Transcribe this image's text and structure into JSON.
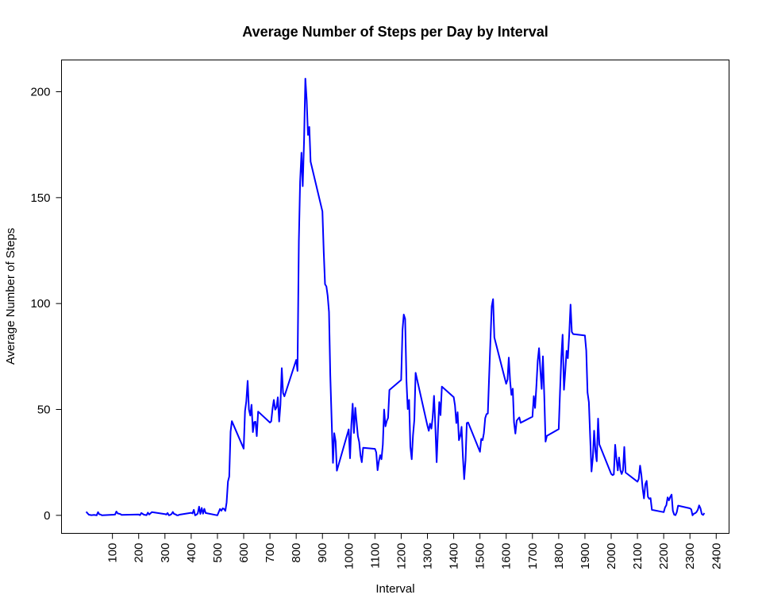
{
  "chart_data": {
    "type": "line",
    "title": "Average Number of Steps per Day by Interval",
    "xlabel": "Interval",
    "ylabel": "Average Number of Steps",
    "xlim": [
      -94,
      2449
    ],
    "ylim": [
      -8.5,
      215
    ],
    "x_ticks": [
      100,
      200,
      300,
      400,
      500,
      600,
      700,
      800,
      900,
      1000,
      1100,
      1200,
      1300,
      1400,
      1500,
      1600,
      1700,
      1800,
      1900,
      2000,
      2100,
      2200,
      2300,
      2400
    ],
    "y_ticks": [
      0,
      50,
      100,
      150,
      200
    ],
    "grid": false,
    "line_color": "#0000ff",
    "series": [
      {
        "values": [
          [
            0,
            1.7
          ],
          [
            10,
            0.3
          ],
          [
            20,
            0.1
          ],
          [
            30,
            0.2
          ],
          [
            40,
            0.0
          ],
          [
            45,
            1.5
          ],
          [
            50,
            0.5
          ],
          [
            55,
            0.4
          ],
          [
            60,
            0.0
          ],
          [
            105,
            0.3
          ],
          [
            110,
            0.4
          ],
          [
            115,
            1.8
          ],
          [
            120,
            0.9
          ],
          [
            130,
            0.6
          ],
          [
            135,
            0.2
          ],
          [
            200,
            0.4
          ],
          [
            205,
            0.1
          ],
          [
            210,
            1.1
          ],
          [
            220,
            0.3
          ],
          [
            230,
            0.1
          ],
          [
            235,
            1.3
          ],
          [
            240,
            0.4
          ],
          [
            250,
            1.5
          ],
          [
            300,
            0.6
          ],
          [
            305,
            0.4
          ],
          [
            310,
            1.1
          ],
          [
            315,
            0.0
          ],
          [
            320,
            0.2
          ],
          [
            325,
            0.6
          ],
          [
            330,
            1.6
          ],
          [
            335,
            0.6
          ],
          [
            340,
            0.5
          ],
          [
            345,
            0.1
          ],
          [
            350,
            0.0
          ],
          [
            355,
            0.3
          ],
          [
            400,
            1.2
          ],
          [
            405,
            0.9
          ],
          [
            410,
            2.6
          ],
          [
            415,
            0.0
          ],
          [
            420,
            0.3
          ],
          [
            425,
            0.9
          ],
          [
            430,
            4.1
          ],
          [
            435,
            0.7
          ],
          [
            440,
            3.5
          ],
          [
            445,
            0.8
          ],
          [
            450,
            3.1
          ],
          [
            455,
            1.1
          ],
          [
            500,
            0.0
          ],
          [
            505,
            1.6
          ],
          [
            510,
            3.0
          ],
          [
            515,
            2.2
          ],
          [
            520,
            3.3
          ],
          [
            525,
            3.0
          ],
          [
            530,
            2.1
          ],
          [
            535,
            6.1
          ],
          [
            540,
            16.0
          ],
          [
            545,
            18.3
          ],
          [
            550,
            39.5
          ],
          [
            555,
            44.5
          ],
          [
            600,
            31.5
          ],
          [
            605,
            49.3
          ],
          [
            610,
            53.8
          ],
          [
            615,
            63.5
          ],
          [
            620,
            50.0
          ],
          [
            625,
            47.1
          ],
          [
            630,
            52.2
          ],
          [
            635,
            39.3
          ],
          [
            640,
            44.0
          ],
          [
            645,
            44.2
          ],
          [
            650,
            37.4
          ],
          [
            655,
            49.0
          ],
          [
            700,
            43.8
          ],
          [
            705,
            44.4
          ],
          [
            710,
            50.5
          ],
          [
            715,
            54.5
          ],
          [
            720,
            49.9
          ],
          [
            725,
            51.0
          ],
          [
            730,
            55.7
          ],
          [
            735,
            44.3
          ],
          [
            740,
            52.3
          ],
          [
            745,
            69.5
          ],
          [
            750,
            57.8
          ],
          [
            755,
            56.2
          ],
          [
            800,
            73.4
          ],
          [
            805,
            68.2
          ],
          [
            810,
            129.4
          ],
          [
            815,
            157.5
          ],
          [
            820,
            171.2
          ],
          [
            825,
            155.4
          ],
          [
            830,
            177.3
          ],
          [
            835,
            206.2
          ],
          [
            840,
            195.9
          ],
          [
            845,
            179.6
          ],
          [
            850,
            183.4
          ],
          [
            855,
            167.0
          ],
          [
            900,
            143.5
          ],
          [
            905,
            124.0
          ],
          [
            910,
            109.1
          ],
          [
            915,
            108.1
          ],
          [
            920,
            103.7
          ],
          [
            925,
            96.0
          ],
          [
            930,
            66.2
          ],
          [
            935,
            45.2
          ],
          [
            940,
            24.8
          ],
          [
            945,
            38.8
          ],
          [
            950,
            34.98
          ],
          [
            955,
            21.1
          ],
          [
            1000,
            40.6
          ],
          [
            1005,
            26.98
          ],
          [
            1010,
            42.4
          ],
          [
            1015,
            52.7
          ],
          [
            1020,
            38.9
          ],
          [
            1025,
            50.8
          ],
          [
            1030,
            44.3
          ],
          [
            1035,
            37.4
          ],
          [
            1040,
            34.7
          ],
          [
            1045,
            28.3
          ],
          [
            1050,
            25.1
          ],
          [
            1055,
            31.9
          ],
          [
            1100,
            31.4
          ],
          [
            1105,
            29.7
          ],
          [
            1110,
            21.3
          ],
          [
            1115,
            25.5
          ],
          [
            1120,
            28.4
          ],
          [
            1125,
            26.5
          ],
          [
            1130,
            33.4
          ],
          [
            1135,
            49.98
          ],
          [
            1140,
            42.0
          ],
          [
            1145,
            44.6
          ],
          [
            1150,
            46.0
          ],
          [
            1155,
            59.2
          ],
          [
            1200,
            63.9
          ],
          [
            1205,
            87.6
          ],
          [
            1210,
            94.8
          ],
          [
            1215,
            92.8
          ],
          [
            1220,
            63.4
          ],
          [
            1225,
            50.2
          ],
          [
            1230,
            54.5
          ],
          [
            1235,
            32.4
          ],
          [
            1240,
            26.5
          ],
          [
            1245,
            37.7
          ],
          [
            1250,
            45.1
          ],
          [
            1255,
            67.3
          ],
          [
            1300,
            42.3
          ],
          [
            1305,
            39.9
          ],
          [
            1310,
            43.3
          ],
          [
            1315,
            40.98
          ],
          [
            1320,
            46.2
          ],
          [
            1325,
            56.4
          ],
          [
            1330,
            42.75
          ],
          [
            1335,
            25.1
          ],
          [
            1340,
            39.96
          ],
          [
            1345,
            53.5
          ],
          [
            1350,
            47.3
          ],
          [
            1355,
            60.8
          ],
          [
            1400,
            55.8
          ],
          [
            1405,
            51.96
          ],
          [
            1410,
            43.6
          ],
          [
            1415,
            48.7
          ],
          [
            1420,
            35.5
          ],
          [
            1425,
            37.5
          ],
          [
            1430,
            41.8
          ],
          [
            1435,
            27.5
          ],
          [
            1440,
            17.1
          ],
          [
            1445,
            26.1
          ],
          [
            1450,
            43.6
          ],
          [
            1455,
            43.8
          ],
          [
            1500,
            30.0
          ],
          [
            1505,
            36.1
          ],
          [
            1510,
            35.5
          ],
          [
            1515,
            38.8
          ],
          [
            1520,
            45.96
          ],
          [
            1525,
            47.8
          ],
          [
            1530,
            48.1
          ],
          [
            1535,
            65.3
          ],
          [
            1540,
            82.9
          ],
          [
            1545,
            98.7
          ],
          [
            1550,
            102.1
          ],
          [
            1555,
            83.96
          ],
          [
            1600,
            62.1
          ],
          [
            1605,
            64.1
          ],
          [
            1610,
            74.5
          ],
          [
            1615,
            63.2
          ],
          [
            1620,
            56.9
          ],
          [
            1625,
            59.8
          ],
          [
            1630,
            43.9
          ],
          [
            1635,
            38.6
          ],
          [
            1640,
            44.7
          ],
          [
            1645,
            45.5
          ],
          [
            1650,
            46.2
          ],
          [
            1655,
            43.7
          ],
          [
            1700,
            46.6
          ],
          [
            1705,
            56.3
          ],
          [
            1710,
            50.7
          ],
          [
            1715,
            61.2
          ],
          [
            1720,
            72.7
          ],
          [
            1725,
            78.9
          ],
          [
            1730,
            68.9
          ],
          [
            1735,
            59.7
          ],
          [
            1740,
            75.1
          ],
          [
            1745,
            56.5
          ],
          [
            1750,
            34.8
          ],
          [
            1755,
            37.5
          ],
          [
            1800,
            40.7
          ],
          [
            1805,
            58.0
          ],
          [
            1810,
            74.7
          ],
          [
            1815,
            85.3
          ],
          [
            1820,
            59.3
          ],
          [
            1825,
            67.8
          ],
          [
            1830,
            77.7
          ],
          [
            1835,
            74.2
          ],
          [
            1840,
            85.3
          ],
          [
            1845,
            99.5
          ],
          [
            1850,
            86.6
          ],
          [
            1855,
            85.6
          ],
          [
            1900,
            84.9
          ],
          [
            1905,
            77.8
          ],
          [
            1910,
            58.0
          ],
          [
            1915,
            53.4
          ],
          [
            1920,
            36.3
          ],
          [
            1925,
            20.7
          ],
          [
            1930,
            27.4
          ],
          [
            1935,
            40.0
          ],
          [
            1940,
            30.2
          ],
          [
            1945,
            25.5
          ],
          [
            1950,
            45.7
          ],
          [
            1955,
            33.5
          ],
          [
            2000,
            19.6
          ],
          [
            2005,
            19.0
          ],
          [
            2010,
            19.3
          ],
          [
            2015,
            33.3
          ],
          [
            2020,
            26.8
          ],
          [
            2025,
            21.2
          ],
          [
            2030,
            27.3
          ],
          [
            2035,
            21.3
          ],
          [
            2040,
            19.5
          ],
          [
            2045,
            21.3
          ],
          [
            2050,
            32.3
          ],
          [
            2055,
            20.2
          ],
          [
            2100,
            15.9
          ],
          [
            2105,
            17.2
          ],
          [
            2110,
            23.5
          ],
          [
            2115,
            19.2
          ],
          [
            2120,
            12.5
          ],
          [
            2125,
            8.0
          ],
          [
            2130,
            14.7
          ],
          [
            2135,
            16.3
          ],
          [
            2140,
            8.7
          ],
          [
            2145,
            7.8
          ],
          [
            2150,
            8.1
          ],
          [
            2155,
            2.6
          ],
          [
            2200,
            1.5
          ],
          [
            2205,
            3.7
          ],
          [
            2210,
            4.8
          ],
          [
            2215,
            8.5
          ],
          [
            2220,
            7.1
          ],
          [
            2225,
            8.7
          ],
          [
            2230,
            9.8
          ],
          [
            2235,
            2.2
          ],
          [
            2240,
            0.3
          ],
          [
            2245,
            0.1
          ],
          [
            2250,
            1.6
          ],
          [
            2255,
            4.6
          ],
          [
            2300,
            3.3
          ],
          [
            2305,
            2.8
          ],
          [
            2310,
            0.0
          ],
          [
            2315,
            0.8
          ],
          [
            2320,
            1.0
          ],
          [
            2325,
            1.6
          ],
          [
            2330,
            2.6
          ],
          [
            2335,
            4.7
          ],
          [
            2340,
            3.3
          ],
          [
            2345,
            0.6
          ],
          [
            2350,
            0.2
          ],
          [
            2355,
            1.1
          ]
        ]
      }
    ]
  }
}
